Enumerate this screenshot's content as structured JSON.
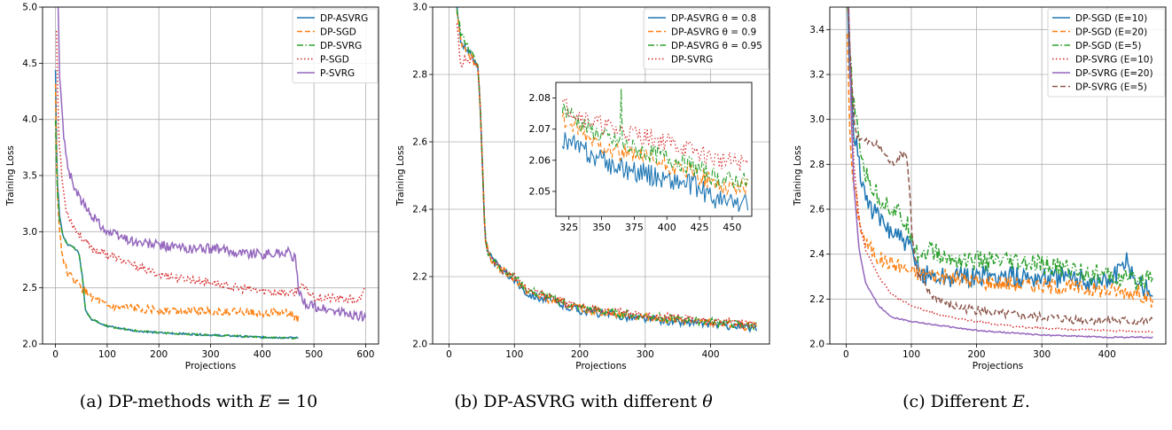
{
  "colors": {
    "blue": "#1f77b4",
    "orange": "#ff7f0e",
    "green": "#2ca02c",
    "red": "#d62728",
    "purple": "#9467bd",
    "brown": "#8c564b",
    "grid": "#b0b0b0"
  },
  "captions": {
    "a_text": "(a) DP-methods with ",
    "a_math": "E",
    "a_tail": " = 10",
    "b_text": "(b) DP-ASVRG with different ",
    "b_math": "θ",
    "c_text": "(c) Different ",
    "c_math": "E",
    "c_tail": "."
  },
  "chart_data": [
    {
      "type": "line",
      "xlabel": "Projections",
      "ylabel": "Training Loss",
      "xlim": [
        -25,
        625
      ],
      "ylim": [
        2.0,
        5.0
      ],
      "xticks": [
        0,
        100,
        200,
        300,
        400,
        500,
        600
      ],
      "yticks": [
        2.0,
        2.5,
        3.0,
        3.5,
        4.0,
        4.5,
        5.0
      ],
      "grid": true,
      "legend_position": "top-right",
      "series": [
        {
          "name": "DP-ASVRG",
          "color": "blue",
          "dash": "solid",
          "noise": 0.008,
          "x": [
            0,
            3,
            8,
            15,
            25,
            35,
            45,
            52,
            58,
            70,
            100,
            150,
            200,
            250,
            300,
            350,
            400,
            470
          ],
          "y": [
            4.44,
            3.5,
            3.15,
            2.95,
            2.88,
            2.86,
            2.82,
            2.6,
            2.3,
            2.22,
            2.16,
            2.12,
            2.1,
            2.09,
            2.08,
            2.07,
            2.06,
            2.055
          ]
        },
        {
          "name": "DP-SGD",
          "color": "orange",
          "dash": "dashed",
          "noise": 0.035,
          "x": [
            0,
            3,
            8,
            15,
            25,
            40,
            55,
            70,
            100,
            150,
            200,
            250,
            300,
            350,
            400,
            450,
            470
          ],
          "y": [
            4.3,
            3.4,
            3.0,
            2.75,
            2.62,
            2.55,
            2.48,
            2.42,
            2.33,
            2.32,
            2.3,
            2.3,
            2.29,
            2.29,
            2.28,
            2.28,
            2.22
          ]
        },
        {
          "name": "DP-SVRG",
          "color": "green",
          "dash": "dashdot",
          "noise": 0.008,
          "x": [
            0,
            3,
            8,
            15,
            25,
            35,
            45,
            52,
            58,
            70,
            100,
            150,
            200,
            250,
            300,
            350,
            400,
            470
          ],
          "y": [
            4.0,
            3.4,
            3.1,
            2.95,
            2.88,
            2.86,
            2.82,
            2.6,
            2.3,
            2.22,
            2.16,
            2.12,
            2.1,
            2.09,
            2.08,
            2.07,
            2.06,
            2.05
          ]
        },
        {
          "name": "P-SGD",
          "color": "red",
          "dash": "dotted",
          "noise": 0.035,
          "x": [
            2,
            6,
            12,
            20,
            35,
            50,
            70,
            100,
            150,
            200,
            250,
            300,
            350,
            400,
            460,
            475,
            500,
            550,
            590,
            600
          ],
          "y": [
            4.8,
            3.9,
            3.5,
            3.2,
            3.05,
            2.95,
            2.85,
            2.8,
            2.7,
            2.62,
            2.58,
            2.55,
            2.5,
            2.47,
            2.45,
            2.52,
            2.42,
            2.4,
            2.39,
            2.5
          ]
        },
        {
          "name": "P-SVRG",
          "color": "purple",
          "dash": "solid",
          "noise": 0.045,
          "x": [
            4,
            8,
            15,
            25,
            40,
            60,
            80,
            100,
            130,
            160,
            200,
            250,
            300,
            350,
            400,
            450,
            465,
            470,
            480,
            500,
            550,
            600
          ],
          "y": [
            5.2,
            4.4,
            3.9,
            3.55,
            3.35,
            3.2,
            3.1,
            3.0,
            2.95,
            2.9,
            2.88,
            2.85,
            2.85,
            2.82,
            2.8,
            2.82,
            2.75,
            2.45,
            2.38,
            2.33,
            2.28,
            2.24
          ]
        }
      ]
    },
    {
      "type": "line",
      "xlabel": "Projections",
      "ylabel": "Training Loss",
      "xlim": [
        -25,
        490
      ],
      "ylim": [
        2.0,
        3.0
      ],
      "xticks": [
        0,
        100,
        200,
        300,
        400
      ],
      "yticks": [
        2.0,
        2.2,
        2.4,
        2.6,
        2.8,
        3.0
      ],
      "grid": true,
      "legend_position": "top-right",
      "series": [
        {
          "name": "DP-ASVRG θ = 0.8",
          "color": "blue",
          "dash": "solid",
          "noise": 0.012,
          "x": [
            12,
            18,
            25,
            35,
            45,
            50,
            55,
            60,
            70,
            80,
            100,
            120,
            150,
            200,
            250,
            300,
            350,
            400,
            450,
            470
          ],
          "y": [
            3.0,
            2.9,
            2.88,
            2.85,
            2.82,
            2.6,
            2.32,
            2.27,
            2.24,
            2.22,
            2.19,
            2.15,
            2.13,
            2.1,
            2.085,
            2.075,
            2.065,
            2.06,
            2.05,
            2.048
          ]
        },
        {
          "name": "DP-ASVRG θ = 0.9",
          "color": "orange",
          "dash": "dashed",
          "noise": 0.012,
          "x": [
            12,
            18,
            25,
            35,
            45,
            50,
            55,
            60,
            70,
            80,
            100,
            120,
            150,
            200,
            250,
            300,
            350,
            400,
            450,
            470
          ],
          "y": [
            3.0,
            2.9,
            2.88,
            2.85,
            2.82,
            2.6,
            2.32,
            2.27,
            2.24,
            2.22,
            2.195,
            2.155,
            2.135,
            2.105,
            2.09,
            2.08,
            2.07,
            2.063,
            2.053,
            2.052
          ]
        },
        {
          "name": "DP-ASVRG θ = 0.95",
          "color": "green",
          "dash": "dashdot",
          "noise": 0.012,
          "x": [
            12,
            18,
            25,
            35,
            45,
            50,
            55,
            60,
            70,
            80,
            100,
            120,
            150,
            200,
            250,
            300,
            350,
            400,
            450,
            470
          ],
          "y": [
            3.0,
            2.92,
            2.9,
            2.86,
            2.82,
            2.6,
            2.32,
            2.27,
            2.24,
            2.22,
            2.2,
            2.16,
            2.14,
            2.108,
            2.093,
            2.083,
            2.073,
            2.066,
            2.056,
            2.055
          ]
        },
        {
          "name": "DP-SVRG",
          "color": "red",
          "dash": "dotted",
          "noise": 0.012,
          "x": [
            12,
            18,
            25,
            35,
            45,
            50,
            55,
            60,
            70,
            80,
            100,
            120,
            150,
            200,
            250,
            300,
            350,
            400,
            450,
            470
          ],
          "y": [
            2.95,
            2.82,
            2.85,
            2.84,
            2.82,
            2.6,
            2.32,
            2.27,
            2.24,
            2.22,
            2.2,
            2.162,
            2.142,
            2.11,
            2.095,
            2.085,
            2.076,
            2.069,
            2.06,
            2.058
          ]
        }
      ],
      "inset": {
        "xlim": [
          315,
          465
        ],
        "ylim": [
          2.042,
          2.085
        ],
        "xticks": [
          325,
          350,
          375,
          400,
          425,
          450
        ],
        "yticks": [
          2.05,
          2.06,
          2.07,
          2.08
        ],
        "grid": false,
        "series": [
          {
            "color": "blue",
            "dash": "solid",
            "noise": 0.0035,
            "x": [
              320,
              340,
              360,
              380,
              400,
              420,
              440,
              462
            ],
            "y": [
              2.067,
              2.062,
              2.058,
              2.056,
              2.054,
              2.052,
              2.047,
              2.046
            ]
          },
          {
            "color": "orange",
            "dash": "dashed",
            "noise": 0.003,
            "x": [
              320,
              340,
              360,
              380,
              400,
              420,
              440,
              462
            ],
            "y": [
              2.073,
              2.067,
              2.063,
              2.061,
              2.058,
              2.056,
              2.052,
              2.051
            ]
          },
          {
            "color": "green",
            "dash": "dashdot",
            "noise": 0.003,
            "spike": [
              365,
              2.083
            ],
            "x": [
              320,
              340,
              360,
              380,
              400,
              420,
              440,
              462
            ],
            "y": [
              2.077,
              2.07,
              2.066,
              2.063,
              2.061,
              2.058,
              2.054,
              2.053
            ]
          },
          {
            "color": "red",
            "dash": "dotted",
            "noise": 0.003,
            "x": [
              320,
              340,
              360,
              380,
              400,
              420,
              440,
              462
            ],
            "y": [
              2.078,
              2.073,
              2.07,
              2.068,
              2.066,
              2.063,
              2.06,
              2.059
            ]
          }
        ]
      }
    },
    {
      "type": "line",
      "xlabel": "Projections",
      "ylabel": "Training Loss",
      "xlim": [
        -25,
        490
      ],
      "ylim": [
        2.0,
        3.5
      ],
      "xticks": [
        0,
        100,
        200,
        300,
        400
      ],
      "yticks": [
        2.0,
        2.2,
        2.4,
        2.6,
        2.8,
        3.0,
        3.2,
        3.4
      ],
      "grid": true,
      "legend_position": "top-right",
      "series": [
        {
          "name": "DP-SGD (E=10)",
          "color": "blue",
          "dash": "solid",
          "noise": 0.05,
          "x": [
            2,
            6,
            10,
            20,
            30,
            50,
            80,
            100,
            110,
            150,
            200,
            250,
            300,
            350,
            400,
            430,
            450,
            470
          ],
          "y": [
            3.5,
            3.2,
            3.0,
            2.8,
            2.65,
            2.55,
            2.48,
            2.42,
            2.32,
            2.3,
            2.3,
            2.3,
            2.3,
            2.29,
            2.28,
            2.36,
            2.27,
            2.24
          ]
        },
        {
          "name": "DP-SGD (E=20)",
          "color": "orange",
          "dash": "dashed",
          "noise": 0.035,
          "x": [
            2,
            6,
            10,
            20,
            30,
            50,
            80,
            100,
            150,
            200,
            250,
            300,
            350,
            400,
            450,
            470
          ],
          "y": [
            3.4,
            2.9,
            2.75,
            2.55,
            2.45,
            2.38,
            2.35,
            2.32,
            2.3,
            2.28,
            2.27,
            2.26,
            2.25,
            2.24,
            2.23,
            2.18
          ]
        },
        {
          "name": "DP-SGD (E=5)",
          "color": "green",
          "dash": "dashdot",
          "noise": 0.045,
          "x": [
            2,
            6,
            10,
            20,
            30,
            50,
            80,
            100,
            110,
            130,
            150,
            200,
            250,
            300,
            350,
            400,
            450,
            470
          ],
          "y": [
            3.5,
            3.3,
            3.1,
            2.9,
            2.75,
            2.65,
            2.58,
            2.5,
            2.4,
            2.42,
            2.38,
            2.37,
            2.36,
            2.35,
            2.33,
            2.3,
            2.28,
            2.32
          ]
        },
        {
          "name": "DP-SVRG (E=10)",
          "color": "red",
          "dash": "dotted",
          "noise": 0.004,
          "x": [
            4,
            8,
            12,
            20,
            30,
            50,
            70,
            100,
            130,
            160,
            200,
            250,
            300,
            350,
            400,
            470
          ],
          "y": [
            3.5,
            3.1,
            2.8,
            2.55,
            2.42,
            2.3,
            2.22,
            2.17,
            2.14,
            2.12,
            2.1,
            2.08,
            2.07,
            2.065,
            2.06,
            2.055
          ]
        },
        {
          "name": "DP-SVRG (E=20)",
          "color": "purple",
          "dash": "solid",
          "noise": 0.003,
          "x": [
            4,
            8,
            12,
            20,
            30,
            50,
            70,
            100,
            150,
            200,
            250,
            300,
            350,
            400,
            470
          ],
          "y": [
            3.5,
            3.0,
            2.7,
            2.42,
            2.27,
            2.17,
            2.12,
            2.1,
            2.08,
            2.06,
            2.05,
            2.04,
            2.035,
            2.03,
            2.03
          ]
        },
        {
          "name": "DP-SVRG (E=5)",
          "color": "brown",
          "dash": "dashed",
          "noise": 0.02,
          "x": [
            3,
            6,
            10,
            14,
            20,
            30,
            50,
            70,
            85,
            92,
            97,
            102,
            110,
            130,
            160,
            200,
            250,
            300,
            350,
            400,
            470
          ],
          "y": [
            3.5,
            3.3,
            3.1,
            2.95,
            2.92,
            2.9,
            2.88,
            2.8,
            2.84,
            2.86,
            2.7,
            2.45,
            2.3,
            2.22,
            2.17,
            2.15,
            2.13,
            2.12,
            2.11,
            2.105,
            2.1
          ]
        }
      ]
    }
  ]
}
